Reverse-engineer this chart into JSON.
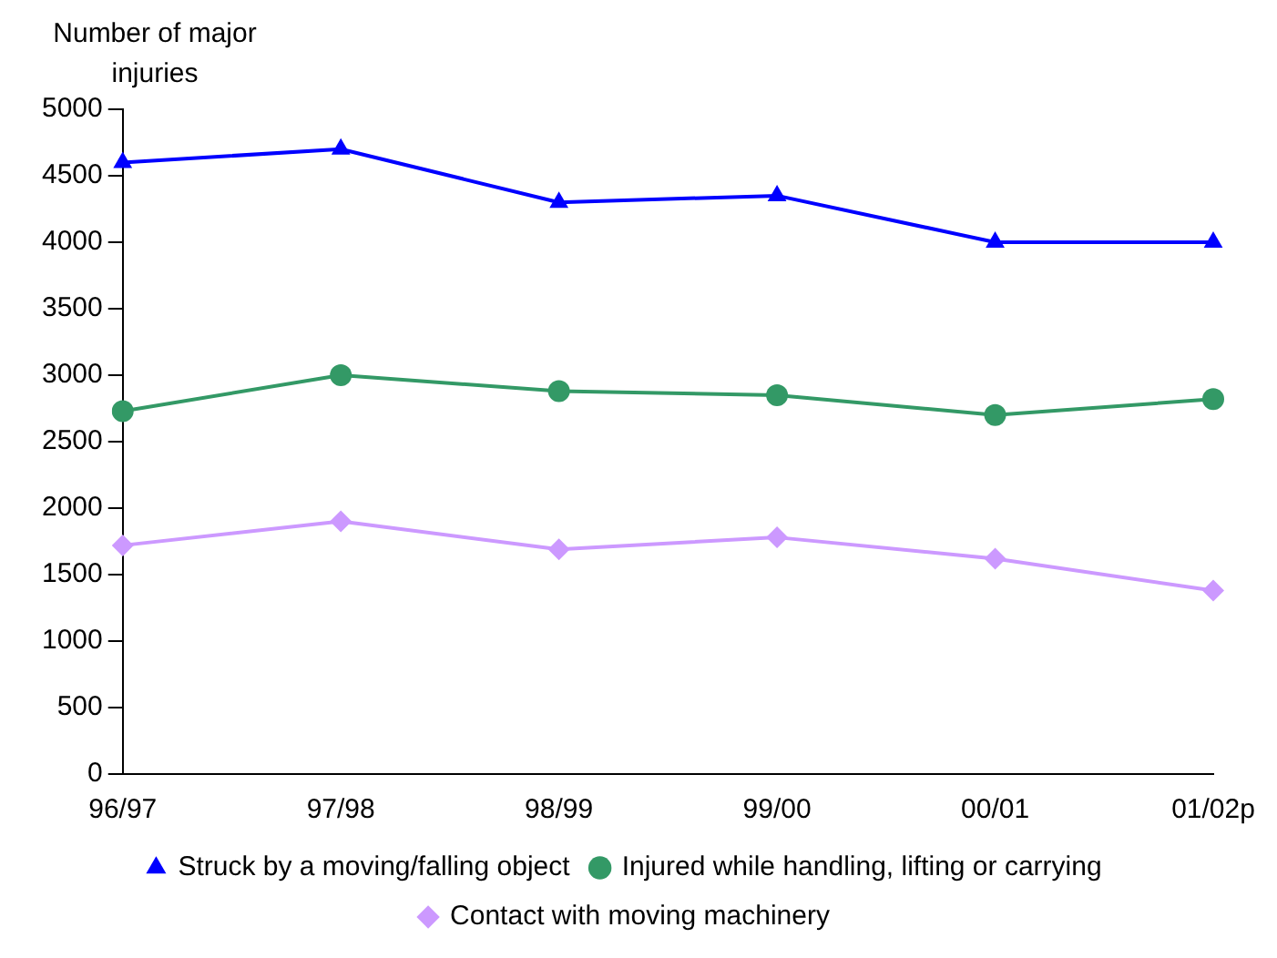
{
  "chart_data": {
    "type": "line",
    "ylabel": "Number of major injuries",
    "categories": [
      "96/97",
      "97/98",
      "98/99",
      "99/00",
      "00/01",
      "01/02p"
    ],
    "series": [
      {
        "name": "Struck by a moving/falling object",
        "color": "#0000ff",
        "marker": "triangle",
        "values": [
          4600,
          4700,
          4300,
          4350,
          4000,
          4000
        ]
      },
      {
        "name": "Injured while handling, lifting or carrying",
        "color": "#339966",
        "marker": "circle",
        "values": [
          2730,
          3000,
          2880,
          2850,
          2700,
          2820
        ]
      },
      {
        "name": "Contact with moving machinery",
        "color": "#cc99ff",
        "marker": "diamond",
        "values": [
          1720,
          1900,
          1690,
          1780,
          1620,
          1380
        ]
      }
    ],
    "ylim": [
      0,
      5000
    ],
    "yticks": [
      0,
      500,
      1000,
      1500,
      2000,
      2500,
      3000,
      3500,
      4000,
      4500,
      5000
    ],
    "grid": false,
    "legend": "bottom",
    "line_style": "solid"
  }
}
